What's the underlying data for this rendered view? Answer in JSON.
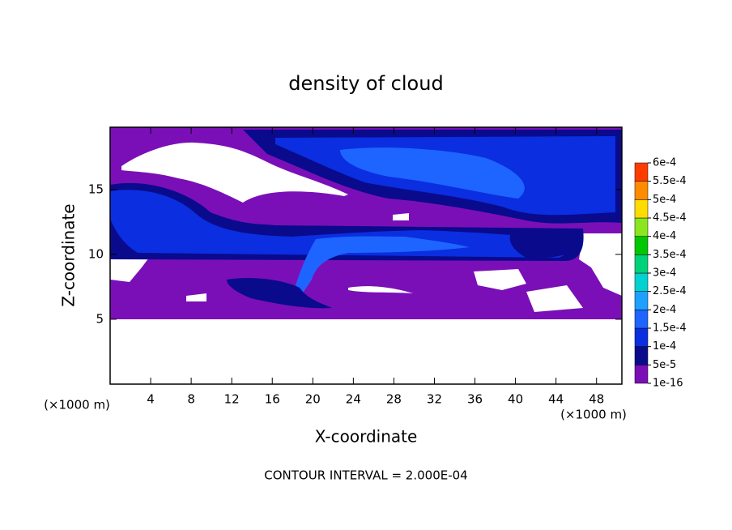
{
  "chart_data": {
    "type": "contour",
    "title": "density of cloud",
    "x_label": "X-coordinate",
    "y_label": "Z-coordinate",
    "x_unit": "(×1000 m)",
    "y_unit": "(×1000 m)",
    "footer": "CONTOUR INTERVAL = 2.000E-04",
    "xlim": [
      0,
      50.5
    ],
    "ylim": [
      0,
      19.8
    ],
    "xticks": [
      4,
      8,
      12,
      16,
      20,
      24,
      28,
      32,
      36,
      40,
      44,
      48
    ],
    "yticks": [
      5,
      10,
      15
    ],
    "colorbar": {
      "levels": [
        {
          "value": 1e-16,
          "label": "1e-16"
        },
        {
          "value": 5e-05,
          "label": "5e-5"
        },
        {
          "value": 0.0001,
          "label": "1e-4"
        },
        {
          "value": 0.00015,
          "label": "1.5e-4"
        },
        {
          "value": 0.0002,
          "label": "2e-4"
        },
        {
          "value": 0.00025,
          "label": "2.5e-4"
        },
        {
          "value": 0.0003,
          "label": "3e-4"
        },
        {
          "value": 0.00035,
          "label": "3.5e-4"
        },
        {
          "value": 0.0004,
          "label": "4e-4"
        },
        {
          "value": 0.00045,
          "label": "4.5e-4"
        },
        {
          "value": 0.0005,
          "label": "5e-4"
        },
        {
          "value": 0.00055,
          "label": "5.5e-4"
        },
        {
          "value": 0.0006,
          "label": "6e-4"
        }
      ],
      "colors": [
        "#7a0fb8",
        "#0a0a8c",
        "#0a2ee0",
        "#1e64ff",
        "#1ea0ff",
        "#00d2d2",
        "#00d27a",
        "#00c800",
        "#8ce61e",
        "#ffdc00",
        "#ff8c00",
        "#ff3c00",
        "#ff8080"
      ]
    }
  }
}
